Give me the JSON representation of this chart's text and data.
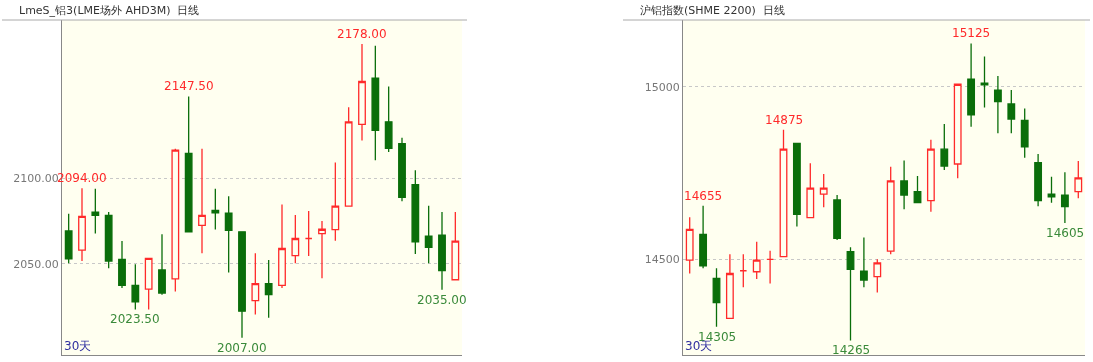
{
  "chart_data": [
    {
      "type": "candlestick",
      "title": "LmeS_铝3(LME场外 AHD3M)",
      "subtitle": "日线",
      "categories": [
        null,
        null,
        null,
        null,
        null,
        null,
        null,
        null,
        null,
        null,
        null,
        null,
        null,
        null,
        null,
        null,
        null,
        null,
        null,
        null,
        null,
        null,
        null,
        null,
        null,
        null,
        null,
        null,
        null,
        null
      ],
      "ohlc": [
        [
          2069.2,
          2079.2,
          2050.4,
          2052.9
        ],
        [
          2058,
          2094,
          2051.7,
          2077.7
        ],
        [
          2080.2,
          2093.7,
          2067.7,
          2078.3
        ],
        [
          2078.3,
          2080.2,
          2047.5,
          2051.7
        ],
        [
          2052.7,
          2063.3,
          2036,
          2037.5
        ],
        [
          2037.5,
          2049.8,
          2023.5,
          2027.9
        ],
        [
          2035.4,
          2053.3,
          2023.5,
          2053.3
        ],
        [
          2046.5,
          2067.3,
          2032.1,
          2033.1
        ],
        [
          2041.3,
          2117.1,
          2034,
          2116.3
        ],
        [
          2114.4,
          2147.5,
          2068.3,
          2068.7
        ],
        [
          2072.5,
          2117.1,
          2056.2,
          2078.3
        ],
        [
          2081.2,
          2093.7,
          2070,
          2079.8
        ],
        [
          2079.6,
          2089.4,
          2045,
          2069.6
        ],
        [
          2068.7,
          2068.7,
          2007,
          2022.5
        ],
        [
          2028.7,
          2056.2,
          2020.6,
          2038.5
        ],
        [
          2038.5,
          2052.3,
          2018.7,
          2032.1
        ],
        [
          2037.5,
          2084.6,
          2036,
          2059
        ],
        [
          2054.8,
          2078.5,
          2050.4,
          2064.8
        ],
        [
          2064.8,
          2080.8,
          2054.6,
          2064.8
        ],
        [
          2067.7,
          2075,
          2041.7,
          2070.2
        ],
        [
          2070,
          2109,
          2063.5,
          2083.7
        ],
        [
          2083.7,
          2141.2,
          2083.5,
          2132.7
        ],
        [
          2131.2,
          2178,
          2121.9,
          2156.2
        ],
        [
          2158.1,
          2177,
          2110.4,
          2127.7
        ],
        [
          2132.7,
          2153.3,
          2115.2,
          2117.3
        ],
        [
          2120,
          2123.5,
          2086.5,
          2088.8
        ],
        [
          2096.2,
          2104.6,
          2055.8,
          2062.9
        ],
        [
          2066.2,
          2083.9,
          2050.4,
          2059.6
        ],
        [
          2066.7,
          2080.2,
          2035,
          2046.2
        ],
        [
          2040.8,
          2080.2,
          2040.8,
          2063.3
        ]
      ],
      "ylim": [
        1997,
        2192
      ],
      "yticks": [
        {
          "value": 2050,
          "label": "2050.00"
        },
        {
          "value": 2100,
          "label": "2100.00"
        }
      ],
      "grid": "y",
      "tick_labels": "y",
      "annotations": [
        {
          "text": "2094.00",
          "y": 2094
        },
        {
          "text": "2147.50",
          "y": 2147.5
        },
        {
          "text": "2178.00",
          "y": 2178
        },
        {
          "text": "2023.50",
          "y": 2023.5
        },
        {
          "text": "2007.00",
          "y": 2007
        },
        {
          "text": "2035.00",
          "y": 2035
        },
        "30天"
      ]
    },
    {
      "type": "candlestick",
      "title": "沪铝指数(SHME 2200)",
      "subtitle": "日线",
      "categories": [
        null,
        null,
        null,
        null,
        null,
        null,
        null,
        null,
        null,
        null,
        null,
        null,
        null,
        null,
        null,
        null,
        null,
        null,
        null,
        null,
        null,
        null,
        null,
        null,
        null,
        null,
        null,
        null,
        null,
        null
      ],
      "ohlc": [
        [
          14498,
          14622,
          14459,
          14587
        ],
        [
          14572,
          14655,
          14474,
          14481
        ],
        [
          14445,
          14474,
          14305,
          14375
        ],
        [
          14329,
          14515,
          14329,
          14459
        ],
        [
          14467,
          14515,
          14419,
          14467
        ],
        [
          14464,
          14551,
          14443,
          14498
        ],
        [
          14500,
          14525,
          14430,
          14500
        ],
        [
          14508,
          14875,
          14508,
          14819
        ],
        [
          14836,
          14836,
          14595,
          14630
        ],
        [
          14621,
          14778,
          14621,
          14706
        ],
        [
          14689,
          14747,
          14651,
          14706
        ],
        [
          14672,
          14686,
          14556,
          14561
        ],
        [
          14522,
          14535,
          14265,
          14471
        ],
        [
          14466,
          14563,
          14419,
          14440
        ],
        [
          14450,
          14500,
          14404,
          14490
        ],
        [
          14524,
          14768,
          14515,
          14727
        ],
        [
          14727,
          14786,
          14645,
          14686
        ],
        [
          14696,
          14741,
          14664,
          14664
        ],
        [
          14670,
          14846,
          14638,
          14819
        ],
        [
          14819,
          14892,
          14759,
          14770
        ],
        [
          14776,
          15007,
          14735,
          15007
        ],
        [
          15022,
          15125,
          14884,
          14918
        ],
        [
          15010,
          15087,
          14940,
          15005
        ],
        [
          14990,
          15031,
          14865,
          14957
        ],
        [
          14950,
          14990,
          14865,
          14906
        ],
        [
          14902,
          14937,
          14794,
          14826
        ],
        [
          14780,
          14805,
          14654,
          14670
        ],
        [
          14689,
          14739,
          14664,
          14681
        ],
        [
          14686,
          14752,
          14605,
          14653
        ],
        [
          14696,
          14785,
          14677,
          14736
        ]
      ],
      "ylim": [
        14223,
        15193
      ],
      "yticks": [
        14500,
        15000
      ],
      "grid": "y",
      "tick_labels": "y",
      "annotations": [
        {
          "text": "14655",
          "y": 14655
        },
        {
          "text": "14875",
          "y": 14875
        },
        {
          "text": "15125",
          "y": 15125
        },
        {
          "text": "14305",
          "y": 14305
        },
        {
          "text": "14265",
          "y": 14265
        },
        {
          "text": "14605",
          "y": 14605
        },
        "30天"
      ]
    }
  ]
}
